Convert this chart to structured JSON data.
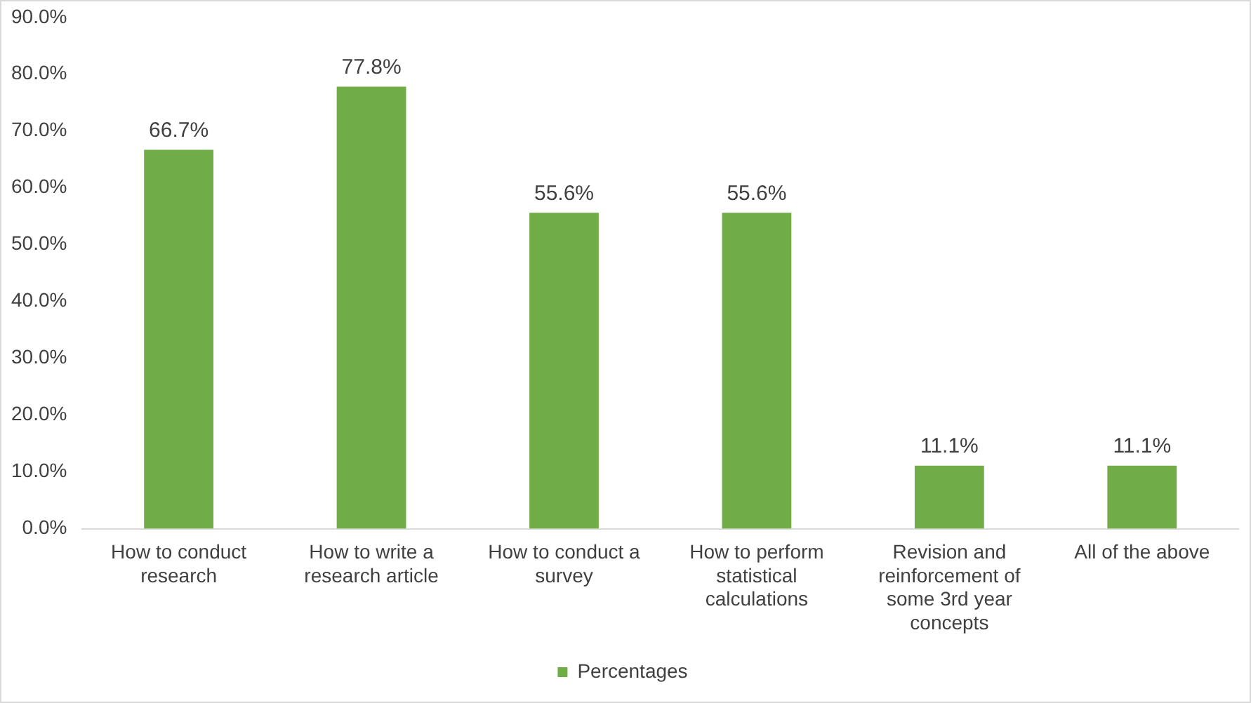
{
  "chart_data": {
    "type": "bar",
    "categories": [
      "How to conduct research",
      "How to write a research article",
      "How to conduct a survey",
      "How to perform statistical calculations",
      "Revision and reinforcement of some 3rd year concepts",
      "All of the above"
    ],
    "series": [
      {
        "name": "Percentages",
        "color": "#70ad47",
        "values": [
          66.7,
          77.8,
          55.6,
          55.6,
          11.1,
          11.1
        ],
        "value_labels": [
          "66.7%",
          "77.8%",
          "55.6%",
          "55.6%",
          "11.1%",
          "11.1%"
        ]
      }
    ],
    "ylim": [
      0,
      90
    ],
    "yticks": [
      {
        "value": 0,
        "label": "0.0%"
      },
      {
        "value": 10,
        "label": "10.0%"
      },
      {
        "value": 20,
        "label": "20.0%"
      },
      {
        "value": 30,
        "label": "30.0%"
      },
      {
        "value": 40,
        "label": "40.0%"
      },
      {
        "value": 50,
        "label": "50.0%"
      },
      {
        "value": 60,
        "label": "60.0%"
      },
      {
        "value": 70,
        "label": "70.0%"
      },
      {
        "value": 80,
        "label": "80.0%"
      },
      {
        "value": 90,
        "label": "90.0%"
      }
    ],
    "grid": false,
    "legend": "bottom"
  }
}
